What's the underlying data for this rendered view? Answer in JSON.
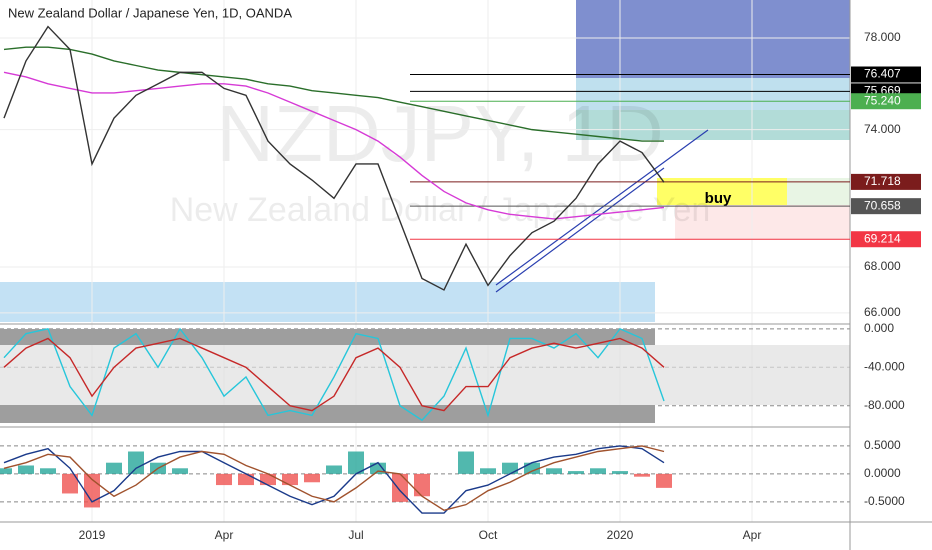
{
  "chart_data": [
    {
      "type": "line",
      "title": "New Zealand Dollar / Japanese Yen, 1D, OANDA",
      "watermark": "NZDJPY, 1D",
      "watermark_subtitle": "New Zealand Dollar / Japanese Yen",
      "annotation": "buy",
      "categories": [
        null,
        null,
        null,
        null,
        "2019",
        null,
        null,
        null,
        null,
        null,
        "Apr",
        null,
        null,
        null,
        null,
        null,
        "Jul",
        null,
        null,
        null,
        null,
        null,
        "Oct",
        null,
        null,
        null,
        null,
        null,
        "2020",
        null,
        null,
        null,
        null,
        null,
        "Apr",
        null,
        null,
        null,
        null
      ],
      "ylim": [
        65.6,
        79.66
      ],
      "yticks": [
        {
          "value": 66,
          "label": "66.000"
        },
        {
          "value": 68,
          "label": "68.000"
        },
        {
          "value": 74,
          "label": "74.000"
        },
        {
          "value": 78,
          "label": "78.000"
        }
      ],
      "levels": [
        {
          "value": 76.407,
          "label": "76.407",
          "color": "#000000"
        },
        {
          "value": 75.669,
          "label": "75.669",
          "color": "#000000"
        },
        {
          "value": 75.24,
          "label": "75.240",
          "color": "#4caf50"
        },
        {
          "value": 71.718,
          "label": "71.718",
          "color": "#7b1c1c"
        },
        {
          "value": 70.658,
          "label": "70.658",
          "color": "#555555"
        },
        {
          "value": 69.214,
          "label": "69.214",
          "color": "#f23645"
        }
      ],
      "series": [
        {
          "color": "#2a6e2a",
          "values": [
            77.5,
            77.6,
            77.6,
            77.5,
            77.3,
            77.0,
            76.8,
            76.6,
            76.5,
            76.4,
            76.3,
            76.2,
            76.0,
            75.9,
            75.7,
            75.6,
            75.5,
            75.4,
            75.2,
            75.0,
            74.8,
            74.6,
            74.4,
            74.2,
            74.0,
            73.9,
            73.8,
            73.7,
            73.6,
            73.5,
            73.5,
            null,
            null,
            null,
            null,
            null,
            null,
            null,
            null
          ]
        },
        {
          "color": "#d63ad6",
          "values": [
            76.5,
            76.3,
            76.0,
            75.8,
            75.6,
            75.6,
            75.7,
            75.8,
            75.9,
            76.0,
            76.0,
            75.9,
            75.6,
            75.2,
            74.8,
            74.4,
            74.0,
            73.5,
            72.8,
            72.0,
            71.3,
            70.8,
            70.5,
            70.3,
            70.2,
            70.1,
            70.2,
            70.3,
            70.4,
            70.5,
            70.6,
            null,
            null,
            null,
            null,
            null,
            null,
            null,
            null
          ]
        },
        {
          "color": "#333333",
          "values": [
            74.5,
            77.0,
            78.5,
            77.5,
            72.5,
            74.5,
            75.5,
            76.0,
            76.5,
            76.5,
            75.8,
            75.5,
            73.5,
            72.5,
            71.8,
            71.0,
            72.5,
            72.5,
            70.0,
            67.5,
            67.0,
            69.0,
            67.2,
            68.5,
            69.5,
            70.0,
            71.0,
            72.5,
            73.5,
            73.0,
            71.7,
            null,
            null,
            null,
            null,
            null,
            null,
            null,
            null
          ]
        }
      ]
    },
    {
      "type": "line",
      "ylim": [
        -100,
        4
      ],
      "yticks": [
        {
          "value": 0,
          "label": "0.000"
        },
        {
          "value": -40,
          "label": "-40.000"
        },
        {
          "value": -80,
          "label": "-80.000"
        }
      ],
      "series": [
        {
          "color": "#26c6da",
          "values": [
            -30,
            -5,
            0,
            -60,
            -90,
            -20,
            -5,
            -40,
            0,
            -30,
            -70,
            -50,
            -90,
            -85,
            -90,
            -50,
            -5,
            -10,
            -80,
            -95,
            -70,
            -20,
            -90,
            -10,
            -10,
            -20,
            -5,
            -30,
            0,
            -10,
            -75,
            null,
            null,
            null,
            null,
            null,
            null,
            null,
            null
          ]
        },
        {
          "color": "#c62828",
          "values": [
            -40,
            -20,
            -10,
            -30,
            -70,
            -40,
            -20,
            -15,
            -10,
            -20,
            -30,
            -40,
            -60,
            -80,
            -85,
            -70,
            -30,
            -20,
            -40,
            -80,
            -85,
            -60,
            -60,
            -30,
            -20,
            -15,
            -20,
            -15,
            -10,
            -20,
            -40,
            null,
            null,
            null,
            null,
            null,
            null,
            null,
            null
          ]
        }
      ]
    },
    {
      "type": "bar",
      "ylim": [
        -0.86,
        0.82
      ],
      "yticks": [
        {
          "value": 0.5,
          "label": "0.5000"
        },
        {
          "value": 0,
          "label": "0.0000"
        },
        {
          "value": -0.5,
          "label": "-0.5000"
        }
      ],
      "up_color": "#26a69a",
      "down_color": "#ef5350",
      "values": [
        0.1,
        0.15,
        0.1,
        -0.35,
        -0.6,
        0.2,
        0.4,
        0.2,
        0.1,
        0,
        -0.2,
        -0.2,
        -0.2,
        -0.2,
        -0.15,
        0.15,
        0.4,
        0.2,
        -0.5,
        -0.4,
        0,
        0.4,
        0.1,
        0.2,
        0.2,
        0.1,
        0.05,
        0.1,
        0.05,
        -0.05,
        -0.25,
        null,
        null,
        null,
        null,
        null,
        null,
        null,
        null
      ],
      "series": [
        {
          "color": "#1a3a8a",
          "values": [
            0.2,
            0.35,
            0.45,
            0.1,
            -0.5,
            -0.3,
            0.1,
            0.3,
            0.4,
            0.4,
            0.2,
            0.0,
            -0.2,
            -0.4,
            -0.55,
            -0.4,
            0.0,
            0.2,
            -0.3,
            -0.7,
            -0.7,
            -0.3,
            -0.2,
            0.0,
            0.2,
            0.3,
            0.35,
            0.45,
            0.5,
            0.45,
            0.2,
            null,
            null,
            null,
            null,
            null,
            null,
            null,
            null
          ]
        },
        {
          "color": "#a0522d",
          "values": [
            0.1,
            0.2,
            0.35,
            0.3,
            -0.1,
            -0.4,
            -0.2,
            0.1,
            0.3,
            0.4,
            0.35,
            0.15,
            0.0,
            -0.2,
            -0.4,
            -0.5,
            -0.25,
            0.05,
            0.0,
            -0.4,
            -0.65,
            -0.55,
            -0.3,
            -0.15,
            0.05,
            0.2,
            0.3,
            0.4,
            0.45,
            0.5,
            0.4,
            null,
            null,
            null,
            null,
            null,
            null,
            null,
            null
          ]
        }
      ]
    }
  ]
}
